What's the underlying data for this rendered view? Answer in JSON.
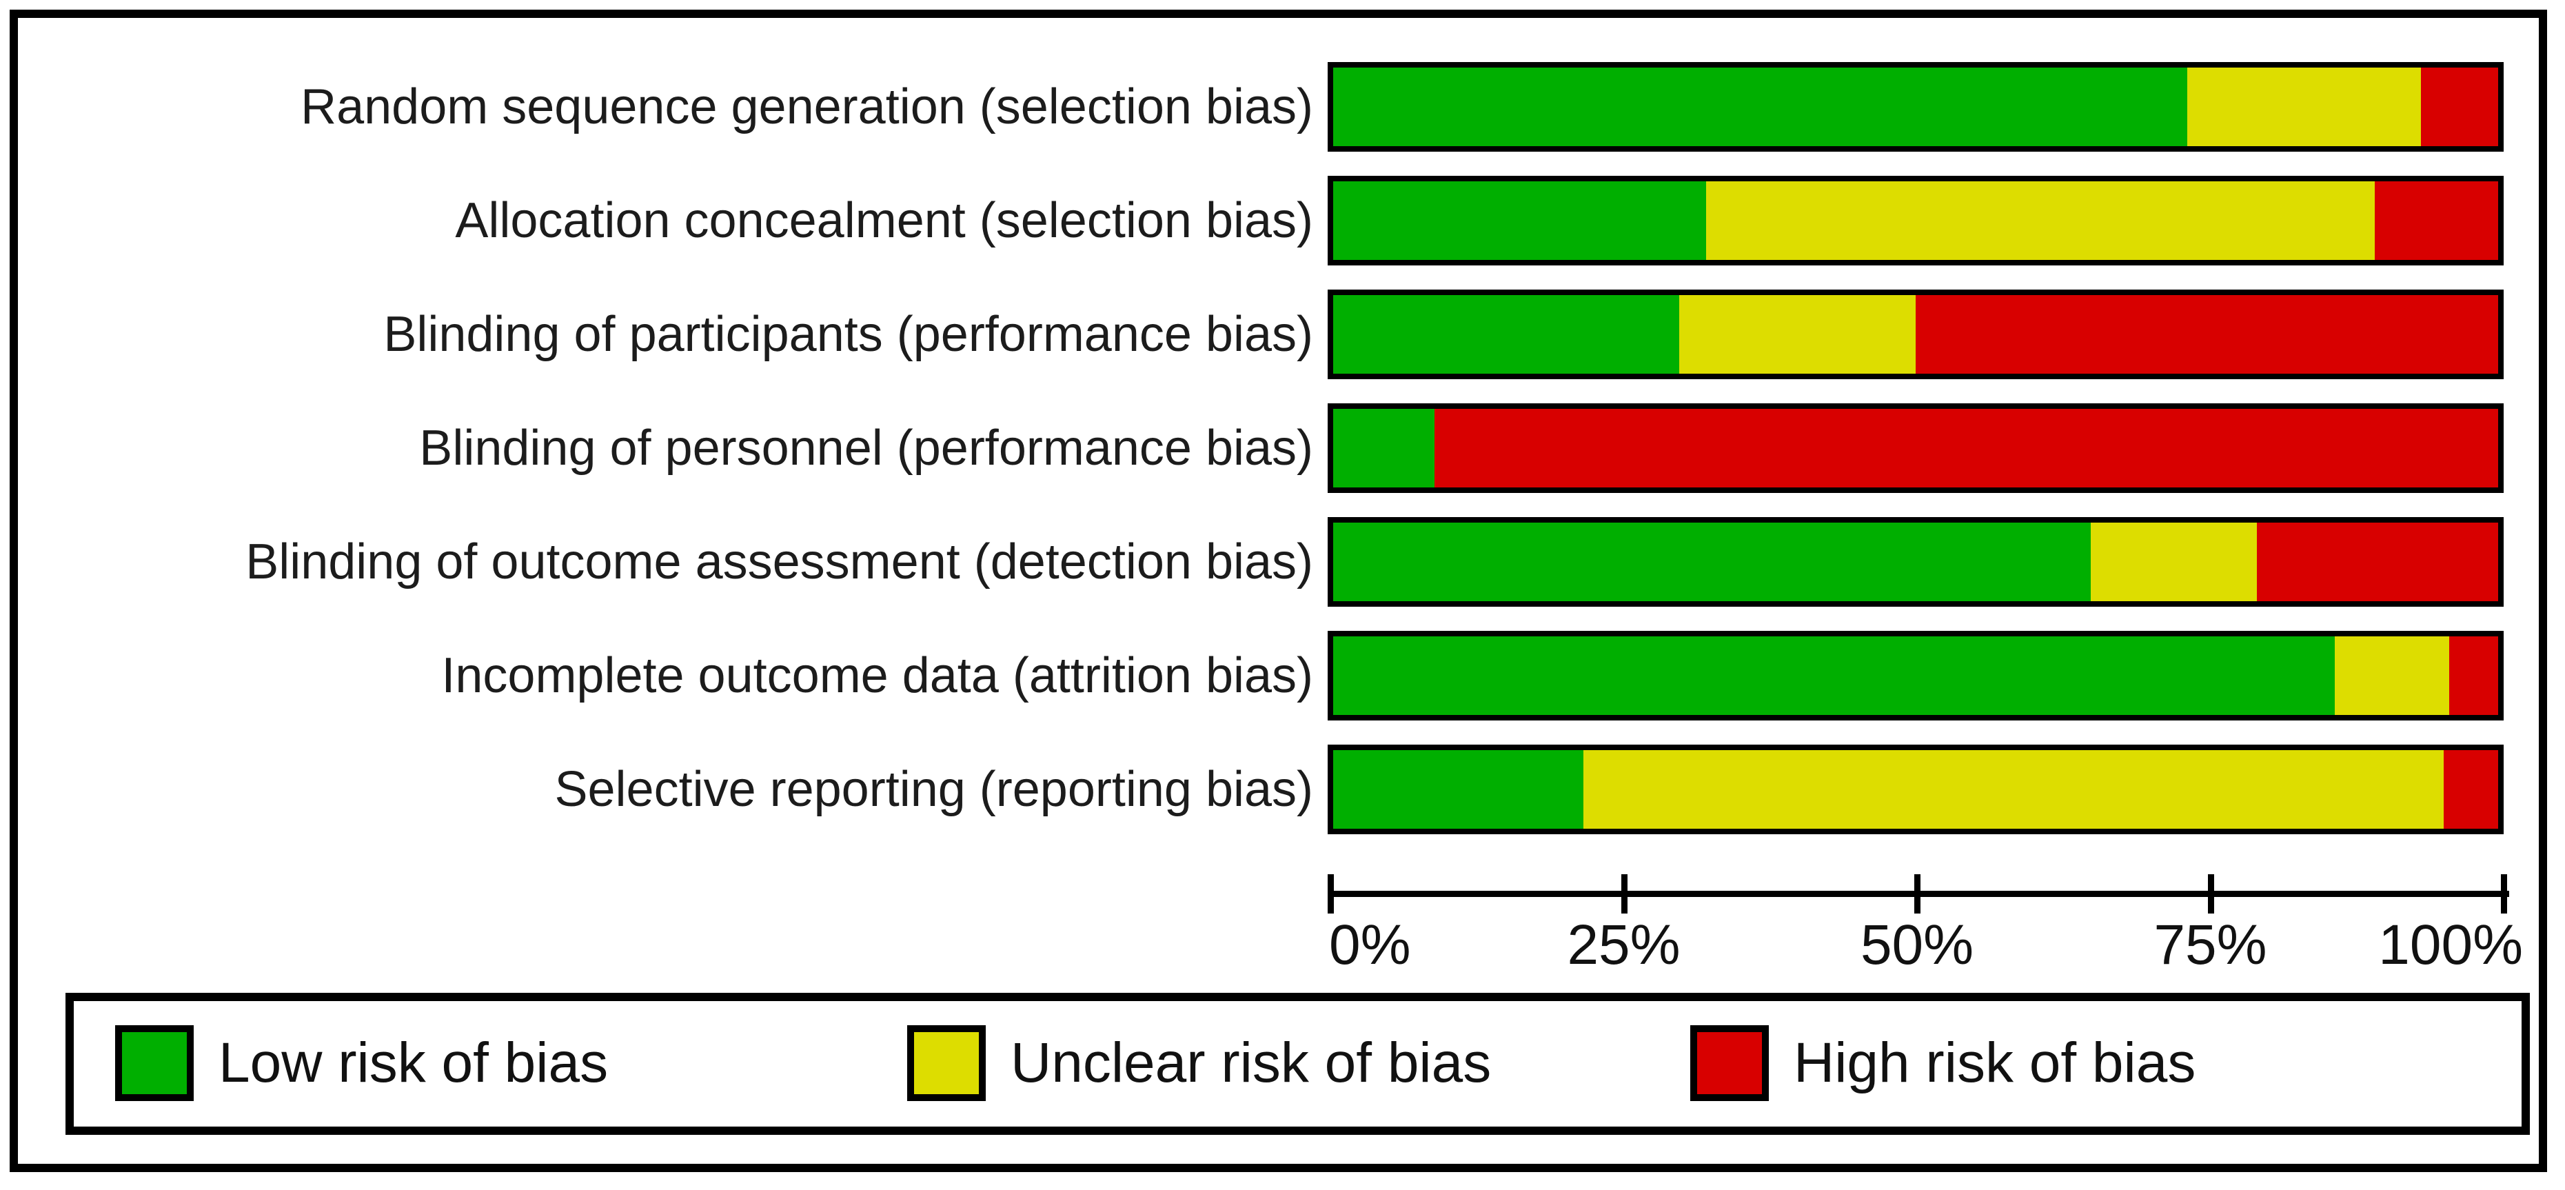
{
  "figure": {
    "background": "#ffffff",
    "frame_color": "#000000",
    "text_color": "#1c1c1c"
  },
  "chart_data": {
    "type": "bar",
    "orientation": "horizontal",
    "stacked": true,
    "title": "",
    "xlabel": "",
    "ylabel": "",
    "categories": [
      "Random sequence generation (selection bias)",
      "Allocation concealment (selection bias)",
      "Blinding of participants (performance bias)",
      "Blinding of personnel (performance bias)",
      "Blinding of outcome assessment (detection bias)",
      "Incomplete outcome data (attrition bias)",
      "Selective reporting (reporting bias)"
    ],
    "series": [
      {
        "name": "Low risk of bias",
        "color": "#00AF00",
        "values": [
          73.3,
          32.0,
          29.7,
          8.7,
          65.0,
          86.0,
          21.5
        ]
      },
      {
        "name": "Unclear risk of bias",
        "color": "#DDDD00",
        "values": [
          20.1,
          57.4,
          20.3,
          0.0,
          14.3,
          9.8,
          73.8
        ]
      },
      {
        "name": "High risk of bias",
        "color": "#D80000",
        "values": [
          6.6,
          10.6,
          50.0,
          91.3,
          20.7,
          4.2,
          4.7
        ]
      }
    ],
    "x_axis": {
      "range": [
        0,
        100
      ],
      "unit": "percent",
      "tick_labels": [
        "0%",
        "25%",
        "50%",
        "75%",
        "100%"
      ]
    },
    "legend": {
      "position": "bottom",
      "items": [
        "Low risk of bias",
        "Unclear risk of bias",
        "High risk of bias"
      ]
    }
  }
}
